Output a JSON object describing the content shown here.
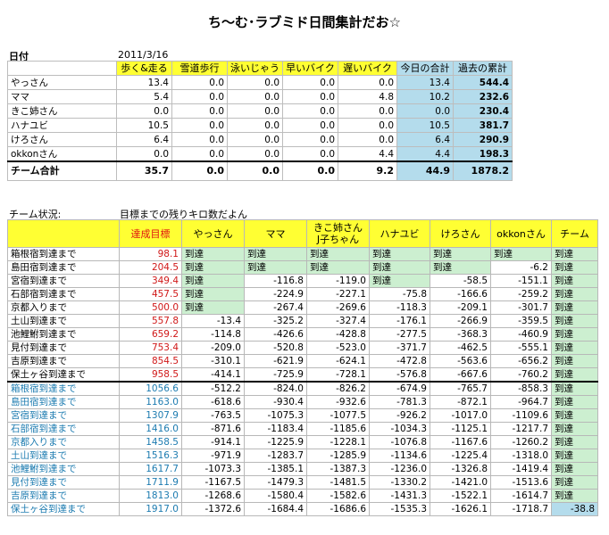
{
  "title": "ち～む･ラブミド日間集計だお☆",
  "date_label": "日付",
  "date_value": "2011/3/16",
  "summary": {
    "headers": [
      "歩く&走る",
      "雪道歩行",
      "泳いじゃう",
      "早いバイク",
      "遅いバイク",
      "今日の合計",
      "過去の累計"
    ],
    "rows": [
      {
        "name": "やっさん",
        "values": [
          "13.4",
          "0.0",
          "0.0",
          "0.0",
          "0.0",
          "13.4",
          "544.4"
        ]
      },
      {
        "name": "ママ",
        "values": [
          "5.4",
          "0.0",
          "0.0",
          "0.0",
          "4.8",
          "10.2",
          "232.6"
        ]
      },
      {
        "name": "きこ姉さん",
        "values": [
          "0.0",
          "0.0",
          "0.0",
          "0.0",
          "0.0",
          "0.0",
          "230.4"
        ]
      },
      {
        "name": "ハナユビ",
        "values": [
          "10.5",
          "0.0",
          "0.0",
          "0.0",
          "0.0",
          "10.5",
          "381.7"
        ]
      },
      {
        "name": "けろさん",
        "values": [
          "6.4",
          "0.0",
          "0.0",
          "0.0",
          "0.0",
          "6.4",
          "290.9"
        ]
      },
      {
        "name": "okkonさん",
        "values": [
          "0.0",
          "0.0",
          "0.0",
          "0.0",
          "4.4",
          "4.4",
          "198.3"
        ]
      }
    ],
    "total": {
      "name": "チーム合計",
      "values": [
        "35.7",
        "0.0",
        "0.0",
        "0.0",
        "9.2",
        "44.9",
        "1878.2"
      ]
    }
  },
  "status": {
    "label": "チーム状況:",
    "note": "目標までの残りキロ数だよん",
    "headers": [
      "達成目標",
      "やっさん",
      "ママ",
      "きこ姉さん\nJ子ちゃん",
      "ハナユビ",
      "けろさん",
      "okkonさん",
      "チーム"
    ],
    "rows": [
      {
        "name": "箱根宿到達まで",
        "target": "98.1",
        "cells": [
          "到達",
          "到達",
          "到達",
          "到達",
          "到達",
          "到達",
          "到達"
        ]
      },
      {
        "name": "島田宿到達まで",
        "target": "204.5",
        "cells": [
          "到達",
          "到達",
          "到達",
          "到達",
          "到達",
          "-6.2",
          "到達"
        ]
      },
      {
        "name": "宮宿到達まで",
        "target": "349.4",
        "cells": [
          "到達",
          "-116.8",
          "-119.0",
          "到達",
          "-58.5",
          "-151.1",
          "到達"
        ]
      },
      {
        "name": "石部宿到達まで",
        "target": "457.5",
        "cells": [
          "到達",
          "-224.9",
          "-227.1",
          "-75.8",
          "-166.6",
          "-259.2",
          "到達"
        ]
      },
      {
        "name": "京都入りまで",
        "target": "500.0",
        "cells": [
          "到達",
          "-267.4",
          "-269.6",
          "-118.3",
          "-209.1",
          "-301.7",
          "到達"
        ]
      },
      {
        "name": "土山到達まで",
        "target": "557.8",
        "cells": [
          "-13.4",
          "-325.2",
          "-327.4",
          "-176.1",
          "-266.9",
          "-359.5",
          "到達"
        ]
      },
      {
        "name": "池鯉鮒到達まで",
        "target": "659.2",
        "cells": [
          "-114.8",
          "-426.6",
          "-428.8",
          "-277.5",
          "-368.3",
          "-460.9",
          "到達"
        ]
      },
      {
        "name": "見付到達まで",
        "target": "753.4",
        "cells": [
          "-209.0",
          "-520.8",
          "-523.0",
          "-371.7",
          "-462.5",
          "-555.1",
          "到達"
        ]
      },
      {
        "name": "吉原到達まで",
        "target": "854.5",
        "cells": [
          "-310.1",
          "-621.9",
          "-624.1",
          "-472.8",
          "-563.6",
          "-656.2",
          "到達"
        ]
      },
      {
        "name": "保土ヶ谷到達まで",
        "target": "958.5",
        "cells": [
          "-414.1",
          "-725.9",
          "-728.1",
          "-576.8",
          "-667.6",
          "-760.2",
          "到達"
        ]
      },
      {
        "name": "箱根宿到達まで",
        "target": "1056.6",
        "cells": [
          "-512.2",
          "-824.0",
          "-826.2",
          "-674.9",
          "-765.7",
          "-858.3",
          "到達"
        ]
      },
      {
        "name": "島田宿到達まで",
        "target": "1163.0",
        "cells": [
          "-618.6",
          "-930.4",
          "-932.6",
          "-781.3",
          "-872.1",
          "-964.7",
          "到達"
        ]
      },
      {
        "name": "宮宿到達まで",
        "target": "1307.9",
        "cells": [
          "-763.5",
          "-1075.3",
          "-1077.5",
          "-926.2",
          "-1017.0",
          "-1109.6",
          "到達"
        ]
      },
      {
        "name": "石部宿到達まで",
        "target": "1416.0",
        "cells": [
          "-871.6",
          "-1183.4",
          "-1185.6",
          "-1034.3",
          "-1125.1",
          "-1217.7",
          "到達"
        ]
      },
      {
        "name": "京都入りまで",
        "target": "1458.5",
        "cells": [
          "-914.1",
          "-1225.9",
          "-1228.1",
          "-1076.8",
          "-1167.6",
          "-1260.2",
          "到達"
        ]
      },
      {
        "name": "土山到達まで",
        "target": "1516.3",
        "cells": [
          "-971.9",
          "-1283.7",
          "-1285.9",
          "-1134.6",
          "-1225.4",
          "-1318.0",
          "到達"
        ]
      },
      {
        "name": "池鯉鮒到達まで",
        "target": "1617.7",
        "cells": [
          "-1073.3",
          "-1385.1",
          "-1387.3",
          "-1236.0",
          "-1326.8",
          "-1419.4",
          "到達"
        ]
      },
      {
        "name": "見付到達まで",
        "target": "1711.9",
        "cells": [
          "-1167.5",
          "-1479.3",
          "-1481.5",
          "-1330.2",
          "-1421.0",
          "-1513.6",
          "到達"
        ]
      },
      {
        "name": "吉原到達まで",
        "target": "1813.0",
        "cells": [
          "-1268.6",
          "-1580.4",
          "-1582.6",
          "-1431.3",
          "-1522.1",
          "-1614.7",
          "到達"
        ]
      },
      {
        "name": "保土ヶ谷到達まで",
        "target": "1917.0",
        "cells": [
          "-1372.6",
          "-1684.4",
          "-1686.6",
          "-1535.3",
          "-1626.1",
          "-1718.7",
          "-38.8"
        ]
      }
    ]
  },
  "colors": {
    "header_yellow": "#ffff33",
    "total_blue": "#b4dcec",
    "reached_green": "#ccefd0",
    "target_red": "#d01818",
    "second_round_blue": "#1c7bb0"
  }
}
